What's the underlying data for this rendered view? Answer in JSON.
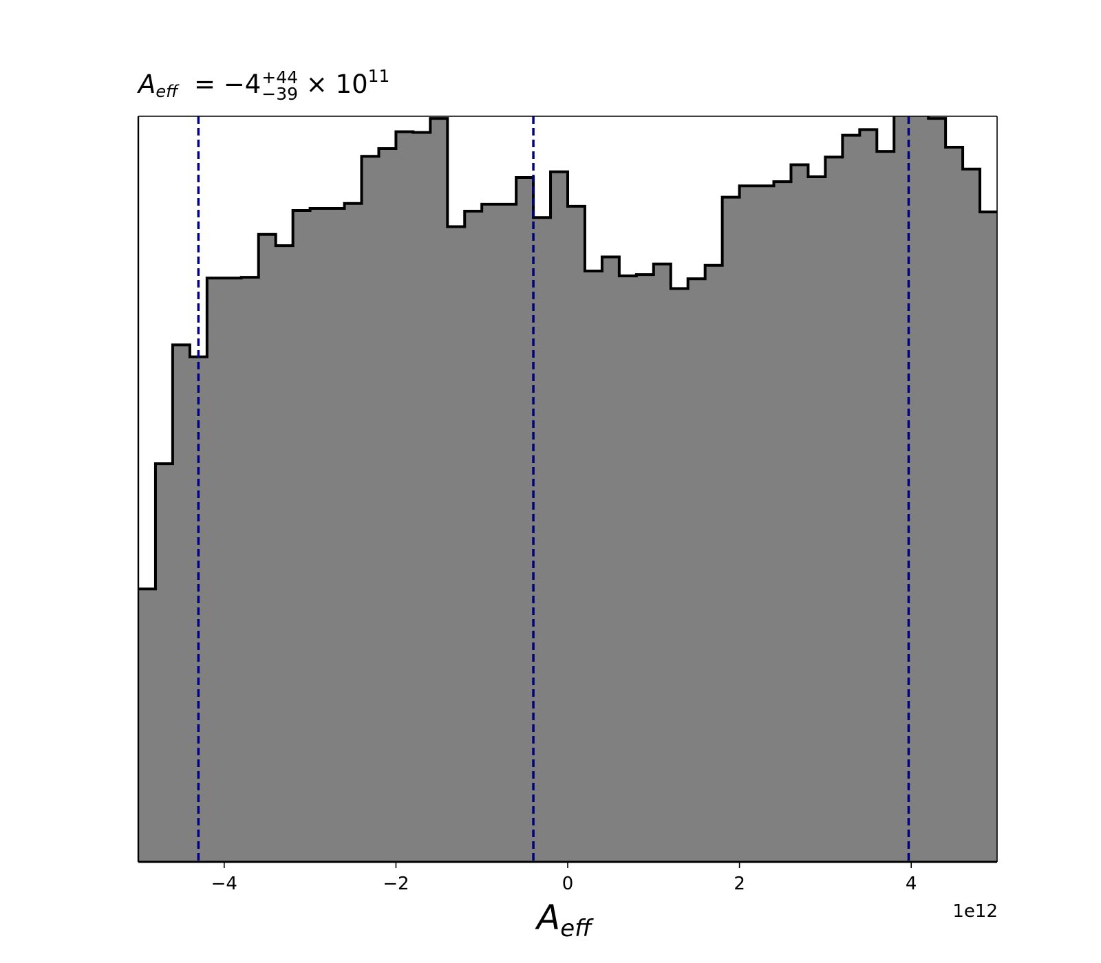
{
  "chart_data": {
    "type": "histogram",
    "title": {
      "symbol": "A",
      "symbol_sub": "eff",
      "equals": "=",
      "value": "−4",
      "plus": "+44",
      "minus": "−39",
      "times": "× 10",
      "exponent": "11"
    },
    "xlabel": {
      "symbol": "A",
      "sub": "eff"
    },
    "x_offset_label": "1e12",
    "xlim": [
      -5.0,
      5.0
    ],
    "x_scale": 1000000000000.0,
    "xticks": [
      {
        "value": -4,
        "label": "−4"
      },
      {
        "value": -2,
        "label": "−2"
      },
      {
        "value": 0,
        "label": "0"
      },
      {
        "value": 2,
        "label": "2"
      },
      {
        "value": 4,
        "label": "4"
      }
    ],
    "yticks_shown": false,
    "bin_range": [
      -5.0,
      5.0
    ],
    "bin_count": 50,
    "counts": [
      388,
      566,
      735,
      718,
      830,
      830,
      831,
      892,
      876,
      926,
      929,
      929,
      936,
      1003,
      1014,
      1038,
      1037,
      1057,
      903,
      925,
      935,
      935,
      973,
      916,
      981,
      932,
      840,
      860,
      833,
      835,
      850,
      815,
      829,
      848,
      945,
      961,
      961,
      967,
      991,
      974,
      1002,
      1033,
      1041,
      1010,
      1069,
      1096,
      1057,
      1016,
      985,
      924
    ],
    "fill_color": "#808080",
    "edge_color": "#000000",
    "ylim": [
      0,
      1060
    ],
    "quantile_lines": {
      "values": [
        -4.3,
        -0.4,
        3.97
      ],
      "color": "#000080",
      "style": "dashed"
    }
  }
}
